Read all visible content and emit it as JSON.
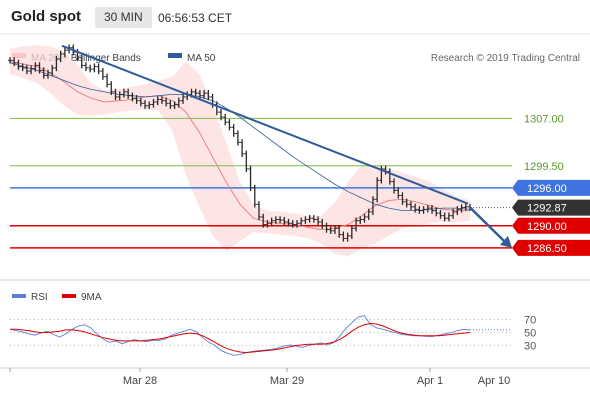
{
  "header": {
    "title": "Gold spot",
    "timeframe": "30 MIN",
    "clock": "06:56:53 CET"
  },
  "legend": {
    "ma20_label": "MA 20 + Bollinger Bands",
    "ma50_label": "MA 50",
    "ma20_color": "#f08080",
    "ma50_color": "#2e5c9a"
  },
  "credit": "Research © 2019 Trading Central",
  "rsi_legend": {
    "rsi_label": "RSI",
    "ma9_label": "9MA",
    "rsi_color": "#5b7fd6",
    "ma9_color": "#e00000"
  },
  "chart_data": [
    {
      "type": "line",
      "title": "Gold spot",
      "price_range": [
        1283.0,
        1321.0
      ],
      "x_labels": [
        "Mar 28",
        "Mar 29",
        "Apr 1",
        "Apr 10"
      ],
      "levels": [
        {
          "value": 1307.0,
          "label": "1307.00",
          "kind": "resistance",
          "color": "#7cbc41"
        },
        {
          "value": 1299.5,
          "label": "1299.50",
          "kind": "resistance",
          "color": "#7cbc41"
        },
        {
          "value": 1296.0,
          "label": "1296.00",
          "kind": "pivot",
          "color": "#3f74e0"
        },
        {
          "value": 1290.0,
          "label": "1290.00",
          "kind": "support",
          "color": "#e00000"
        },
        {
          "value": 1286.5,
          "label": "1286.50",
          "kind": "support",
          "color": "#e00000"
        }
      ],
      "last_price": {
        "value": 1292.87,
        "label": "1292.87",
        "color": "#333333"
      },
      "trendline": {
        "from": 1318.5,
        "to": 1293.5,
        "color": "#2e5c9a"
      },
      "projection": {
        "from": 1292.9,
        "to": 1286.5,
        "color": "#2e5c9a"
      },
      "price_series": [
        1316.2,
        1315.8,
        1315.2,
        1315.0,
        1314.5,
        1314.9,
        1315.4,
        1314.6,
        1313.8,
        1314.2,
        1315.0,
        1316.4,
        1317.2,
        1317.8,
        1318.2,
        1317.5,
        1316.6,
        1315.4,
        1315.0,
        1314.8,
        1315.2,
        1314.5,
        1313.6,
        1312.4,
        1311.2,
        1310.4,
        1310.8,
        1311.2,
        1310.6,
        1310.2,
        1309.8,
        1309.4,
        1309.0,
        1309.2,
        1309.6,
        1310.0,
        1309.8,
        1309.4,
        1309.0,
        1309.2,
        1309.8,
        1310.4,
        1310.8,
        1311.2,
        1311.0,
        1310.6,
        1311.0,
        1310.4,
        1309.2,
        1308.0,
        1307.2,
        1306.4,
        1305.6,
        1304.6,
        1303.2,
        1301.4,
        1299.0,
        1296.0,
        1293.4,
        1291.4,
        1290.2,
        1290.4,
        1290.8,
        1291.0,
        1290.9,
        1290.6,
        1290.4,
        1290.2,
        1290.4,
        1290.8,
        1291.0,
        1291.2,
        1291.0,
        1290.6,
        1290.0,
        1289.4,
        1289.2,
        1289.6,
        1288.6,
        1288.0,
        1288.4,
        1289.6,
        1290.8,
        1291.0,
        1291.4,
        1292.2,
        1294.2,
        1297.2,
        1299.0,
        1298.6,
        1297.0,
        1295.6,
        1294.8,
        1293.8,
        1293.4,
        1293.0,
        1292.6,
        1292.4,
        1292.6,
        1292.8,
        1292.4,
        1292.0,
        1291.6,
        1291.2,
        1291.6,
        1292.2,
        1292.6,
        1292.9,
        1293.0,
        1292.87
      ],
      "ma50_series": [
        1315.8,
        1315.2,
        1314.6,
        1313.8,
        1313.0,
        1312.2,
        1311.6,
        1311.2,
        1310.8,
        1310.6,
        1310.4,
        1310.6,
        1310.8,
        1310.8,
        1310.4,
        1309.8,
        1308.6,
        1307.2,
        1305.6,
        1304.0,
        1302.4,
        1300.8,
        1299.4,
        1298.0,
        1296.6,
        1295.4,
        1294.4,
        1293.4,
        1292.8,
        1292.4,
        1292.4,
        1292.6,
        1292.8,
        1292.8,
        1292.6
      ],
      "ma20_series": [
        1316.0,
        1315.6,
        1315.2,
        1314.2,
        1312.8,
        1311.2,
        1310.2,
        1309.6,
        1309.8,
        1310.0,
        1310.4,
        1310.6,
        1309.8,
        1308.0,
        1304.8,
        1300.8,
        1296.8,
        1293.4,
        1291.2,
        1290.6,
        1290.4,
        1290.2,
        1289.8,
        1289.4,
        1289.6,
        1290.2,
        1291.6,
        1293.2,
        1294.0,
        1294.2,
        1293.8,
        1293.2,
        1292.6,
        1292.4,
        1292.4
      ],
      "bollinger_upper": [
        1318.0,
        1318.4,
        1318.6,
        1318.4,
        1317.6,
        1315.4,
        1312.6,
        1311.4,
        1311.6,
        1312.0,
        1312.4,
        1313.0,
        1313.6,
        1316.0,
        1314.0,
        1309.0,
        1303.0,
        1297.0,
        1293.4,
        1292.4,
        1292.2,
        1292.0,
        1291.6,
        1291.6,
        1293.6,
        1297.0,
        1299.6,
        1299.6,
        1299.0,
        1298.4,
        1297.8,
        1297.0,
        1295.8,
        1294.6,
        1294.0
      ],
      "bollinger_lower": [
        1314.0,
        1313.4,
        1312.6,
        1311.0,
        1309.0,
        1307.6,
        1307.4,
        1307.6,
        1308.0,
        1308.2,
        1308.4,
        1308.2,
        1305.0,
        1298.0,
        1293.0,
        1288.4,
        1286.0,
        1287.6,
        1289.0,
        1288.8,
        1288.6,
        1288.4,
        1288.0,
        1287.2,
        1285.6,
        1285.2,
        1286.4,
        1287.2,
        1288.4,
        1289.6,
        1290.0,
        1290.4,
        1290.6,
        1290.6,
        1290.8
      ]
    },
    {
      "type": "line",
      "title": "RSI",
      "ylim": [
        0,
        100
      ],
      "y_ticks": [
        30,
        50,
        70
      ],
      "series": [
        {
          "name": "RSI",
          "color": "#5b7fd6",
          "values": [
            55,
            53,
            51,
            48,
            46,
            49,
            52,
            47,
            43,
            48,
            55,
            60,
            62,
            57,
            48,
            40,
            35,
            37,
            33,
            36,
            39,
            37,
            36,
            38,
            38,
            40,
            46,
            49,
            52,
            55,
            51,
            42,
            35,
            30,
            22,
            18,
            15,
            16,
            19,
            21,
            22,
            23,
            24,
            26,
            29,
            31,
            29,
            27,
            30,
            32,
            34,
            31,
            34,
            44,
            56,
            65,
            74,
            76,
            62,
            57,
            55,
            52,
            50,
            47,
            46,
            45,
            45,
            44,
            44,
            46,
            48,
            50,
            53,
            55,
            54
          ]
        },
        {
          "name": "9MA",
          "color": "#e00000",
          "values": [
            55,
            55,
            54,
            53,
            51,
            50,
            50,
            51,
            52,
            54,
            54,
            53,
            51,
            48,
            45,
            42,
            40,
            38,
            37,
            37,
            37,
            37,
            38,
            39,
            40,
            42,
            44,
            46,
            48,
            49,
            48,
            45,
            40,
            35,
            29,
            25,
            22,
            20,
            19,
            20,
            21,
            22,
            23,
            24,
            26,
            28,
            30,
            31,
            32,
            32,
            32,
            33,
            35,
            39,
            45,
            52,
            58,
            62,
            64,
            63,
            60,
            56,
            52,
            49,
            47,
            46,
            45,
            45,
            45,
            45,
            46,
            47,
            48,
            49,
            50
          ]
        }
      ]
    }
  ]
}
